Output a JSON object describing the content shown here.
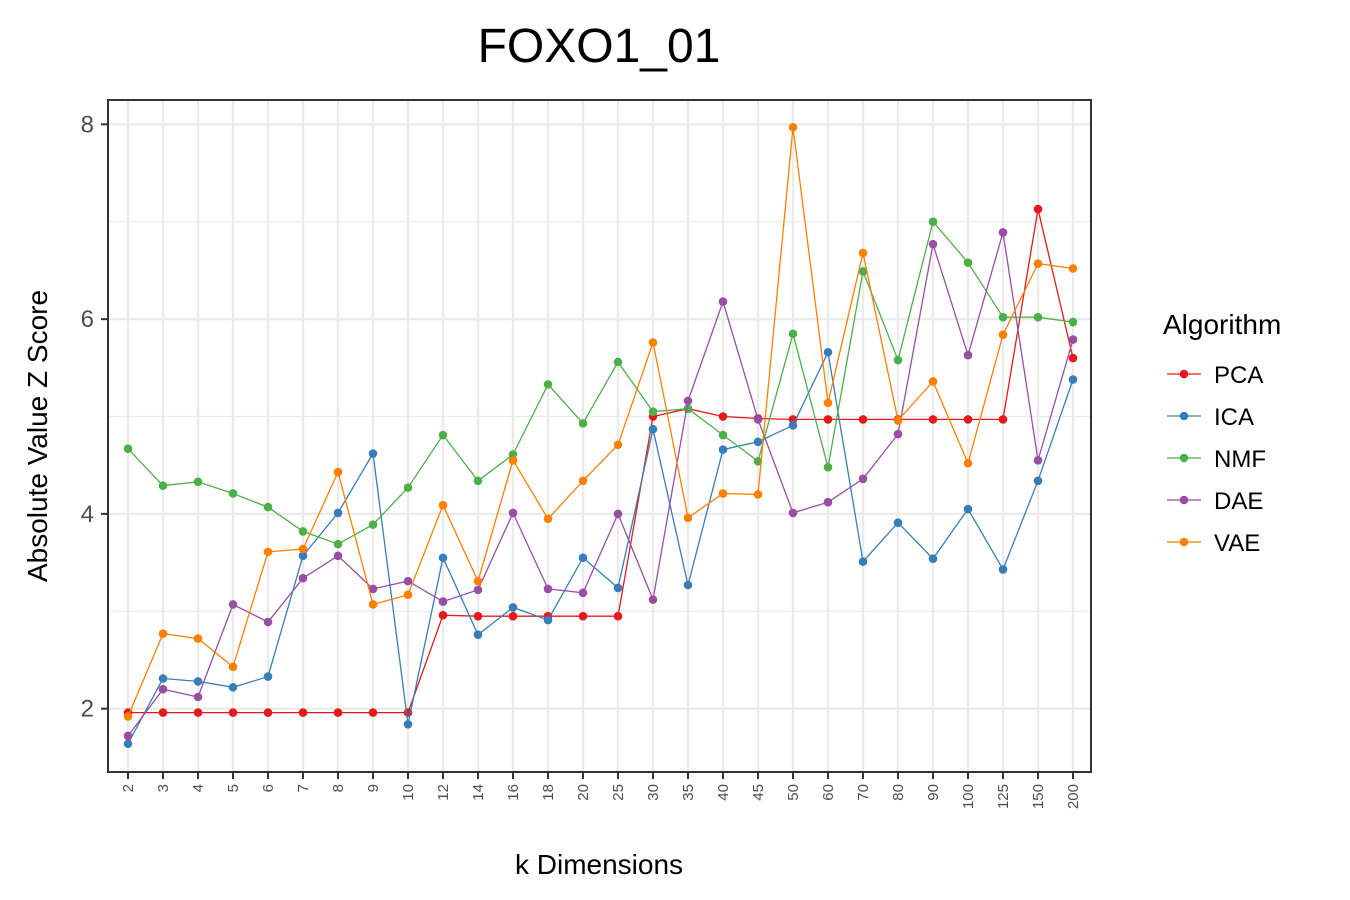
{
  "chart_data": {
    "type": "line",
    "title": "FOXO1_01",
    "xlabel": "k Dimensions",
    "ylabel": "Absolute Value Z Score",
    "categories": [
      "2",
      "3",
      "4",
      "5",
      "6",
      "7",
      "8",
      "9",
      "10",
      "12",
      "14",
      "16",
      "18",
      "20",
      "25",
      "30",
      "35",
      "40",
      "45",
      "50",
      "60",
      "70",
      "80",
      "90",
      "100",
      "125",
      "150",
      "200"
    ],
    "ylim": [
      1.35,
      8.25
    ],
    "yticks": [
      2,
      4,
      6,
      8
    ],
    "grid": true,
    "legend": {
      "title": "Algorithm",
      "position": "right"
    },
    "series": [
      {
        "name": "PCA",
        "color": "#E41A1C",
        "values": [
          1.96,
          1.96,
          1.96,
          1.96,
          1.96,
          1.96,
          1.96,
          1.96,
          1.96,
          2.96,
          2.95,
          2.95,
          2.95,
          2.95,
          2.95,
          5.0,
          5.08,
          5.0,
          4.98,
          4.97,
          4.97,
          4.97,
          4.97,
          4.97,
          4.97,
          4.97,
          7.13,
          5.6
        ]
      },
      {
        "name": "ICA",
        "color": "#377EB8",
        "values": [
          1.64,
          2.31,
          2.28,
          2.22,
          2.33,
          3.57,
          4.01,
          4.62,
          1.84,
          3.55,
          2.76,
          3.04,
          2.91,
          3.55,
          3.24,
          4.87,
          3.27,
          4.66,
          4.74,
          4.91,
          5.66,
          3.51,
          3.91,
          3.54,
          4.05,
          3.43,
          4.34,
          5.38
        ]
      },
      {
        "name": "NMF",
        "color": "#4DAF4A",
        "values": [
          4.67,
          4.29,
          4.33,
          4.21,
          4.07,
          3.82,
          3.69,
          3.89,
          4.27,
          4.81,
          4.34,
          4.61,
          5.33,
          4.93,
          5.56,
          5.05,
          5.08,
          4.81,
          4.54,
          5.85,
          4.48,
          6.49,
          5.58,
          7.0,
          6.58,
          6.02,
          6.02,
          5.97
        ]
      },
      {
        "name": "DAE",
        "color": "#984EA3",
        "values": [
          1.72,
          2.2,
          2.12,
          3.07,
          2.89,
          3.34,
          3.57,
          3.23,
          3.31,
          3.1,
          3.22,
          4.01,
          3.23,
          3.19,
          4.0,
          3.12,
          5.16,
          6.18,
          4.97,
          4.01,
          4.12,
          4.36,
          4.82,
          6.77,
          5.63,
          6.89,
          4.55,
          5.79
        ]
      },
      {
        "name": "VAE",
        "color": "#FF7F00",
        "values": [
          1.92,
          2.77,
          2.72,
          2.43,
          3.61,
          3.64,
          4.43,
          3.07,
          3.17,
          4.09,
          3.31,
          4.55,
          3.95,
          4.34,
          4.71,
          5.76,
          3.96,
          4.21,
          4.2,
          7.97,
          5.14,
          6.68,
          4.96,
          5.36,
          4.52,
          5.84,
          6.57,
          6.52
        ]
      }
    ]
  }
}
